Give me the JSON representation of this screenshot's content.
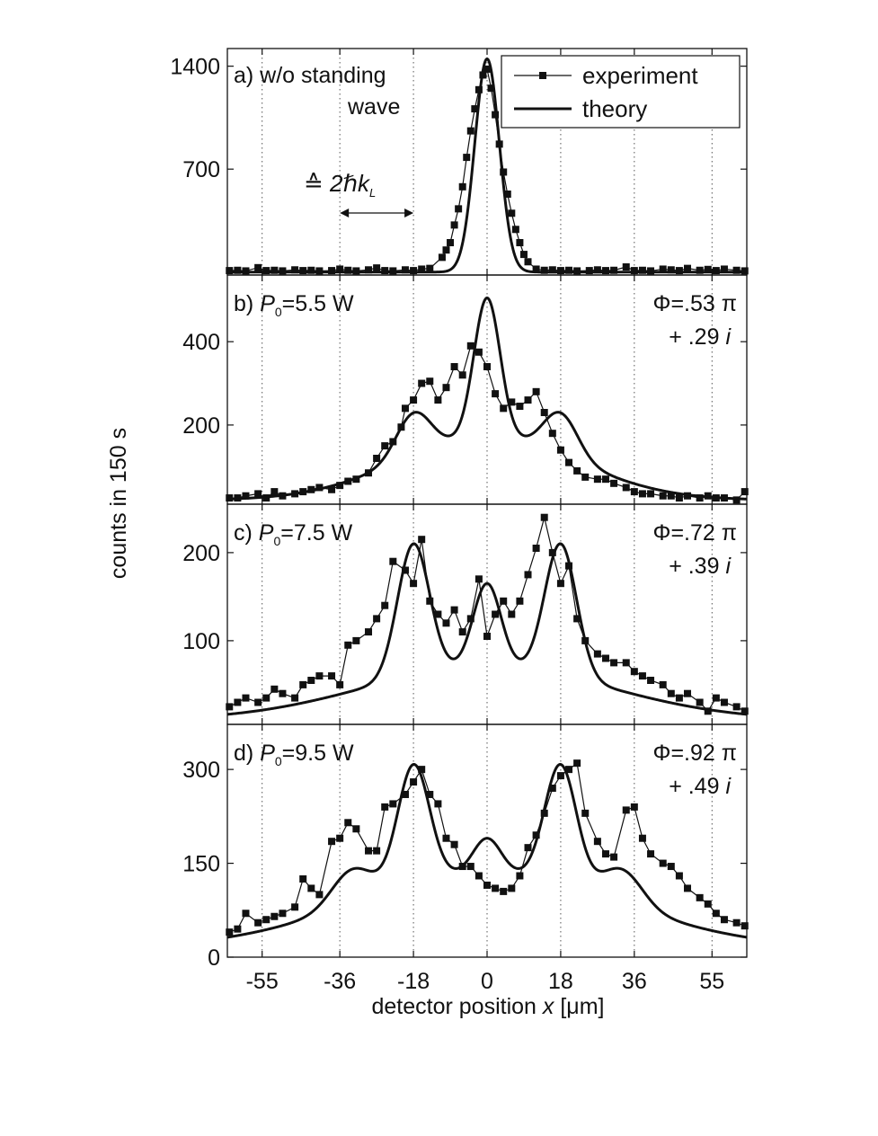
{
  "chart_data": {
    "type": "line",
    "ylabel": "counts in 150 s",
    "xlabel": "detector position x [μm]",
    "x_ticks": [
      -55,
      -36,
      -18,
      0,
      18,
      36,
      55
    ],
    "xlim": [
      -63.5,
      63.5
    ],
    "grid": "vertical dotted lines at x ticks",
    "legend": {
      "placement": "top-right",
      "entries": [
        "experiment",
        "theory"
      ]
    },
    "panels": [
      {
        "label": "a) w/o standing",
        "label2": "wave",
        "annotation": "≙ 2ℏk",
        "annotation_sub": "L",
        "annotation_range": [
          -36,
          -18
        ],
        "ylim": [
          -20,
          1520
        ],
        "yticks": [
          700,
          1400
        ],
        "theory_params": {
          "center": 0,
          "sigma": 3.0,
          "amp": 1450,
          "base": 0
        },
        "experiment": {
          "x": [
            -63,
            -61,
            -59,
            -56,
            -54,
            -52,
            -50,
            -47,
            -45,
            -43,
            -41,
            -38,
            -36,
            -34,
            -32,
            -29,
            -27,
            -25,
            -23,
            -20,
            -18,
            -16,
            -14,
            -11,
            -10,
            -9,
            -8,
            -7,
            -6,
            -5,
            -4,
            -3,
            -2,
            -1,
            0,
            1,
            2,
            3,
            4,
            5,
            6,
            7,
            8,
            9,
            10,
            12,
            14,
            16,
            18,
            20,
            22,
            25,
            27,
            29,
            31,
            34,
            36,
            38,
            40,
            43,
            45,
            47,
            49,
            52,
            54,
            56,
            58,
            61,
            63
          ],
          "y": [
            10,
            12,
            8,
            30,
            10,
            12,
            8,
            15,
            10,
            12,
            8,
            10,
            20,
            12,
            8,
            15,
            28,
            10,
            8,
            15,
            10,
            20,
            25,
            100,
            150,
            200,
            320,
            430,
            580,
            780,
            960,
            1110,
            1240,
            1340,
            1380,
            1250,
            1070,
            870,
            680,
            530,
            400,
            290,
            200,
            120,
            70,
            20,
            12,
            15,
            10,
            12,
            8,
            10,
            15,
            10,
            12,
            35,
            10,
            12,
            8,
            20,
            15,
            10,
            25,
            12,
            18,
            10,
            20,
            12,
            8
          ]
        }
      },
      {
        "label": "b) P",
        "label_sub": "0",
        "label_rest": "=5.5 W",
        "phi_line1": "Φ=.53 π",
        "phi_line2": "+ .29 i",
        "ylim": [
          10,
          560
        ],
        "yticks": [
          200,
          400
        ],
        "theory_params": {
          "base": 20,
          "broad_amp": 150,
          "broad_sigma": 22,
          "peak_amp": 102,
          "peak_sigma": 4.2,
          "center_amp": 335,
          "center_sigma": 3.2
        },
        "experiment": {
          "x": [
            -63,
            -61,
            -59,
            -56,
            -54,
            -52,
            -50,
            -47,
            -45,
            -43,
            -41,
            -38,
            -36,
            -34,
            -32,
            -29,
            -27,
            -25,
            -23,
            -21,
            -20,
            -18,
            -16,
            -14,
            -12,
            -10,
            -8,
            -6,
            -4,
            -2,
            0,
            2,
            4,
            6,
            8,
            10,
            12,
            14,
            16,
            18,
            20,
            22,
            24,
            27,
            29,
            31,
            34,
            36,
            38,
            40,
            43,
            45,
            47,
            49,
            52,
            54,
            56,
            58,
            61,
            63
          ],
          "y": [
            25,
            25,
            30,
            35,
            25,
            40,
            30,
            35,
            40,
            45,
            50,
            45,
            55,
            65,
            70,
            85,
            120,
            150,
            160,
            195,
            240,
            260,
            300,
            305,
            260,
            290,
            340,
            320,
            390,
            375,
            340,
            275,
            240,
            255,
            245,
            260,
            280,
            230,
            180,
            140,
            110,
            90,
            75,
            70,
            70,
            60,
            50,
            40,
            35,
            35,
            30,
            30,
            25,
            30,
            25,
            30,
            25,
            25,
            20,
            40
          ]
        }
      },
      {
        "label": "c) P",
        "label_sub": "0",
        "label_rest": "=7.5 W",
        "phi_line1": "Φ=.72 π",
        "phi_line2": "+ .39 i",
        "ylim": [
          5,
          255
        ],
        "yticks": [
          100,
          200
        ],
        "theory_params": {
          "base": 10,
          "broad_amp": 60,
          "broad_sigma": 30,
          "peak_amp": 150,
          "peak_sigma": 3.9,
          "center_amp": 95,
          "center_sigma": 3.4
        },
        "experiment": {
          "x": [
            -63,
            -61,
            -59,
            -56,
            -54,
            -52,
            -50,
            -47,
            -45,
            -43,
            -41,
            -38,
            -36,
            -34,
            -32,
            -29,
            -27,
            -25,
            -23,
            -20,
            -18,
            -16,
            -14,
            -12,
            -10,
            -8,
            -6,
            -4,
            -2,
            0,
            2,
            4,
            6,
            8,
            10,
            12,
            14,
            16,
            18,
            20,
            22,
            24,
            27,
            29,
            31,
            34,
            36,
            38,
            40,
            43,
            45,
            47,
            49,
            52,
            54,
            56,
            58,
            61,
            63
          ],
          "y": [
            25,
            30,
            35,
            30,
            35,
            45,
            40,
            35,
            50,
            55,
            60,
            60,
            50,
            95,
            100,
            110,
            125,
            140,
            190,
            180,
            165,
            215,
            145,
            130,
            120,
            135,
            110,
            125,
            170,
            105,
            130,
            145,
            130,
            145,
            175,
            205,
            240,
            200,
            165,
            185,
            125,
            100,
            85,
            80,
            75,
            75,
            65,
            60,
            55,
            50,
            40,
            35,
            40,
            30,
            20,
            35,
            30,
            25,
            20
          ]
        }
      },
      {
        "label": "d) P",
        "label_sub": "0",
        "label_rest": "=9.5 W",
        "phi_line1": "Φ=.92 π",
        "phi_line2": "+ .49 i",
        "ylim": [
          0,
          372
        ],
        "yticks": [
          0,
          150,
          300
        ],
        "theory_params": {
          "base": 15,
          "broad_amp": 120,
          "broad_sigma": 32,
          "peak_amp": 190,
          "peak_sigma": 3.9,
          "sat_amp": 55,
          "sat_sigma": 5,
          "sat_pos": 33,
          "center_amp": 55,
          "center_sigma": 3.4
        },
        "experiment": {
          "x": [
            -63,
            -61,
            -59,
            -56,
            -54,
            -52,
            -50,
            -47,
            -45,
            -43,
            -41,
            -38,
            -36,
            -34,
            -32,
            -29,
            -27,
            -25,
            -23,
            -20,
            -18,
            -16,
            -14,
            -12,
            -10,
            -8,
            -6,
            -4,
            -2,
            0,
            2,
            4,
            6,
            8,
            10,
            12,
            14,
            16,
            18,
            20,
            22,
            24,
            27,
            29,
            31,
            34,
            36,
            38,
            40,
            43,
            45,
            47,
            49,
            52,
            54,
            56,
            58,
            61,
            63
          ],
          "y": [
            40,
            45,
            70,
            55,
            60,
            65,
            70,
            80,
            125,
            110,
            100,
            185,
            190,
            215,
            205,
            170,
            170,
            240,
            245,
            260,
            280,
            300,
            260,
            245,
            190,
            180,
            145,
            145,
            130,
            115,
            110,
            105,
            110,
            130,
            175,
            195,
            230,
            270,
            290,
            300,
            310,
            230,
            185,
            165,
            160,
            235,
            240,
            190,
            165,
            150,
            145,
            130,
            110,
            95,
            85,
            70,
            60,
            55,
            50
          ]
        }
      }
    ]
  }
}
